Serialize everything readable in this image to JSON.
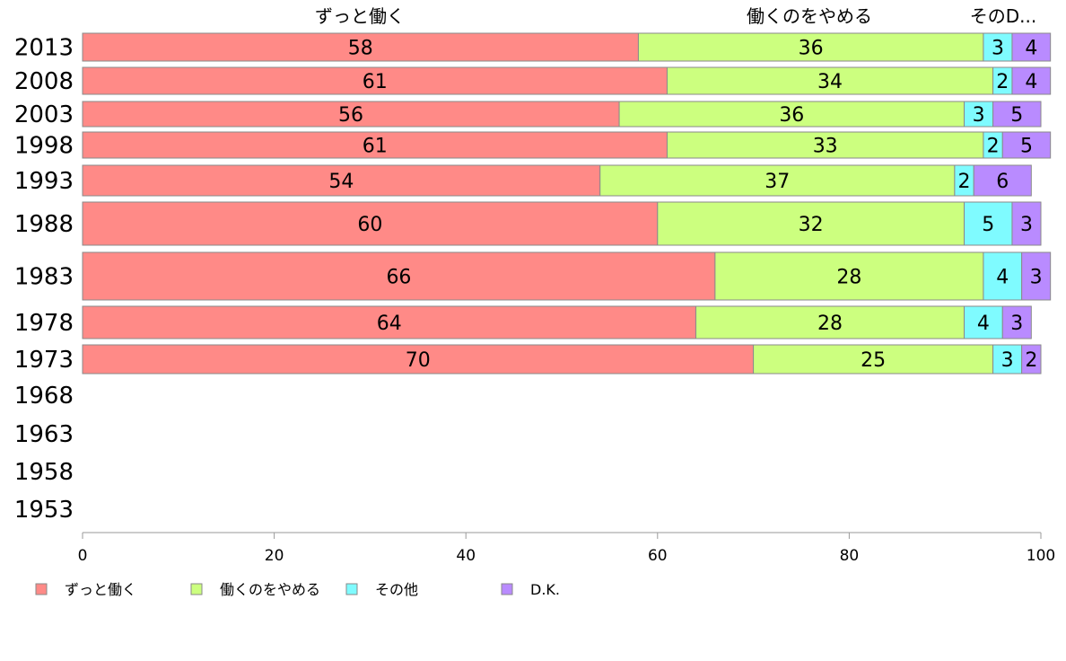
{
  "chart_data": {
    "type": "bar",
    "orientation": "horizontal",
    "stacked": true,
    "categories": [
      "2013",
      "2008",
      "2003",
      "1998",
      "1993",
      "1988",
      "1983",
      "1978",
      "1973",
      "1968",
      "1963",
      "1958",
      "1953"
    ],
    "series": [
      {
        "name": "ずっと働く",
        "color": "#ff8a87",
        "values": [
          58,
          61,
          56,
          61,
          54,
          60,
          66,
          64,
          70,
          null,
          null,
          null,
          null
        ]
      },
      {
        "name": "働くのをやめる",
        "color": "#ccff7f",
        "values": [
          36,
          34,
          36,
          33,
          37,
          32,
          28,
          28,
          25,
          null,
          null,
          null,
          null
        ]
      },
      {
        "name": "その他",
        "color": "#7ffbff",
        "values": [
          3,
          2,
          3,
          2,
          2,
          5,
          4,
          4,
          3,
          null,
          null,
          null,
          null
        ]
      },
      {
        "name": "D.K.",
        "color": "#b98bff",
        "values": [
          4,
          4,
          5,
          5,
          6,
          3,
          3,
          3,
          2,
          null,
          null,
          null,
          null
        ]
      }
    ],
    "top_labels": [
      "ずっと働く",
      "働くのをやめる",
      "そのD..."
    ],
    "x_ticks": [
      "0",
      "20",
      "40",
      "60",
      "80",
      "100"
    ],
    "xlim": [
      0,
      100
    ],
    "grid": false,
    "legend_position": "bottom",
    "title": "",
    "xlabel": "",
    "ylabel": ""
  }
}
